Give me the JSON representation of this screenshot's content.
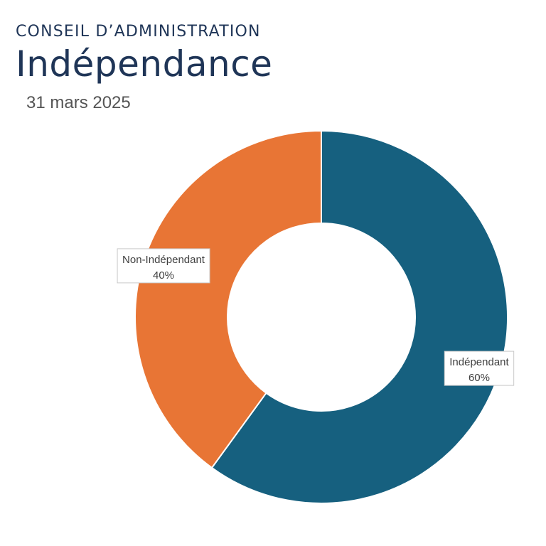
{
  "header": {
    "supertitle": "CONSEIL D’ADMINISTRATION",
    "title": "Indépendance",
    "date": "31 mars 2025"
  },
  "chart_data": {
    "type": "pie",
    "donut": true,
    "categories": [
      "Indépendant",
      "Non-Indépendant"
    ],
    "values": [
      60,
      40
    ],
    "value_labels": [
      "60%",
      "40%"
    ],
    "colors": [
      "#16607f",
      "#e87535"
    ],
    "title": "",
    "legend": "none"
  }
}
